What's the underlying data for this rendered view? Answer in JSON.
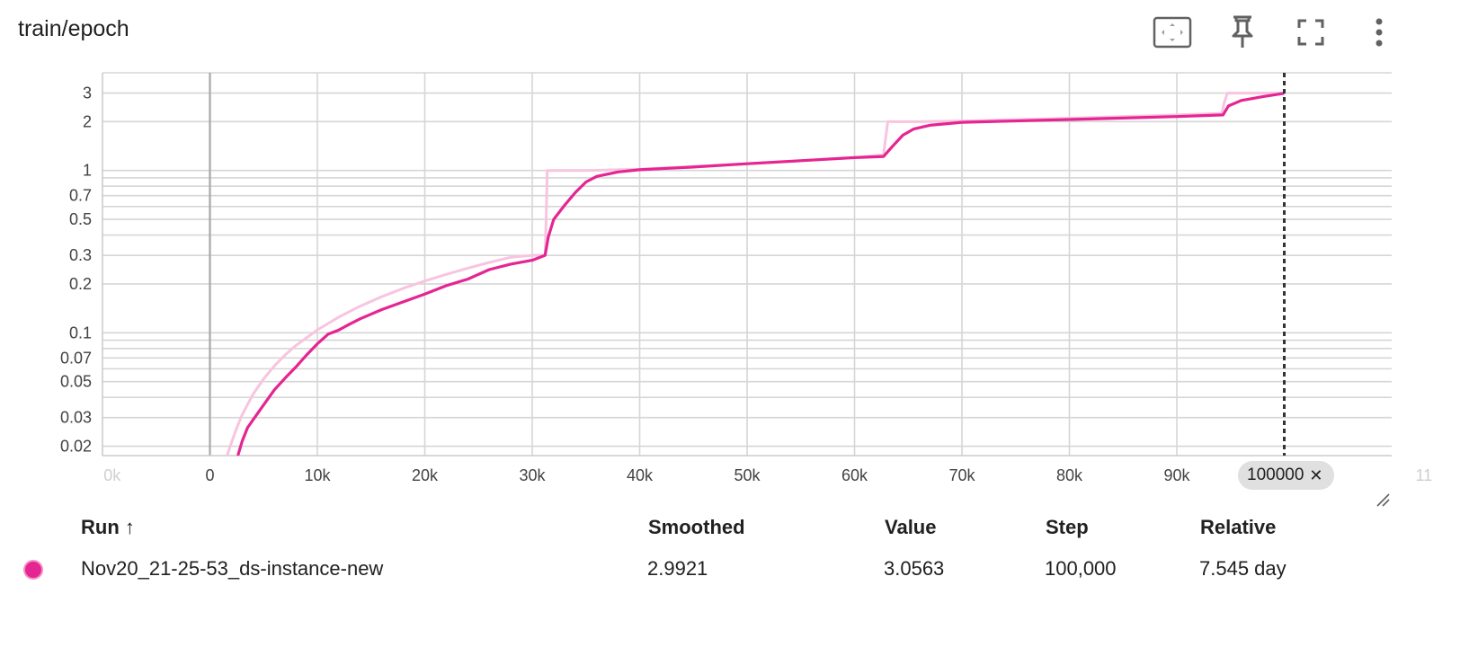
{
  "card": {
    "title": "train/epoch",
    "toolbar": [
      {
        "name": "fit-domain-icon"
      },
      {
        "name": "pin-icon"
      },
      {
        "name": "fullscreen-icon"
      },
      {
        "name": "more-vert-icon"
      }
    ]
  },
  "colors": {
    "smoothed": "#e52592",
    "raw": "#f8c4df",
    "grid": "#d6d6d6",
    "cursor": "#333333"
  },
  "chart_data": {
    "type": "line",
    "title": "",
    "xlabel": "",
    "ylabel": "",
    "y_scale": "log",
    "grid": true,
    "x_range": [
      -10000,
      110000
    ],
    "y_range": [
      0.0175,
      4.0
    ],
    "x_ticks": [
      0,
      10000,
      20000,
      30000,
      40000,
      50000,
      60000,
      70000,
      80000,
      90000
    ],
    "x_tick_labels": [
      "0",
      "10k",
      "20k",
      "30k",
      "40k",
      "50k",
      "60k",
      "70k",
      "80k",
      "90k"
    ],
    "x_tick_labels_faded": [
      "0k",
      "11"
    ],
    "y_ticks": [
      0.02,
      0.03,
      0.05,
      0.07,
      0.1,
      0.2,
      0.3,
      0.5,
      0.7,
      1,
      2,
      3
    ],
    "y_tick_labels": [
      "0.02",
      "0.03",
      "0.05",
      "0.07",
      "0.1",
      "0.2",
      "0.3",
      "0.5",
      "0.7",
      "1",
      "2",
      "3"
    ],
    "y_minor_grid": [
      0.04,
      0.06,
      0.08,
      0.09,
      0.4,
      0.6,
      0.8,
      0.9,
      4
    ],
    "cursor_step": 100000,
    "cursor_label": "100000",
    "series": [
      {
        "role": "raw",
        "points": [
          [
            1600,
            0.0175
          ],
          [
            2000,
            0.021
          ],
          [
            2500,
            0.026
          ],
          [
            3000,
            0.0313
          ],
          [
            4000,
            0.0417
          ],
          [
            5000,
            0.052
          ],
          [
            6000,
            0.0625
          ],
          [
            7000,
            0.073
          ],
          [
            8000,
            0.0834
          ],
          [
            10000,
            0.1042
          ],
          [
            12000,
            0.125
          ],
          [
            14000,
            0.146
          ],
          [
            16000,
            0.167
          ],
          [
            18000,
            0.188
          ],
          [
            20000,
            0.2085
          ],
          [
            22000,
            0.229
          ],
          [
            24000,
            0.25
          ],
          [
            26000,
            0.271
          ],
          [
            28000,
            0.292
          ],
          [
            30000,
            0.3
          ],
          [
            31200,
            0.3
          ],
          [
            31300,
            0.5
          ],
          [
            31400,
            1.0
          ],
          [
            35000,
            1.0
          ],
          [
            40000,
            1.02
          ],
          [
            50000,
            1.1
          ],
          [
            60000,
            1.2
          ],
          [
            62700,
            1.25
          ],
          [
            62900,
            1.6
          ],
          [
            63100,
            2.0
          ],
          [
            66000,
            2.0
          ],
          [
            70000,
            2.02
          ],
          [
            80000,
            2.1
          ],
          [
            90000,
            2.2
          ],
          [
            94200,
            2.25
          ],
          [
            94400,
            2.6
          ],
          [
            94700,
            3.0
          ],
          [
            100000,
            3.0
          ]
        ]
      },
      {
        "role": "smoothed",
        "points": [
          [
            2600,
            0.0175
          ],
          [
            3000,
            0.0215
          ],
          [
            3500,
            0.026
          ],
          [
            4000,
            0.029
          ],
          [
            5000,
            0.036
          ],
          [
            6000,
            0.0445
          ],
          [
            7000,
            0.0525
          ],
          [
            8000,
            0.0615
          ],
          [
            9000,
            0.073
          ],
          [
            10000,
            0.0855
          ],
          [
            11000,
            0.098
          ],
          [
            12000,
            0.104
          ],
          [
            13000,
            0.113
          ],
          [
            14000,
            0.122
          ],
          [
            16000,
            0.139
          ],
          [
            18000,
            0.155
          ],
          [
            20000,
            0.173
          ],
          [
            22000,
            0.195
          ],
          [
            24000,
            0.214
          ],
          [
            26000,
            0.245
          ],
          [
            28000,
            0.265
          ],
          [
            30000,
            0.28
          ],
          [
            31200,
            0.3
          ],
          [
            31500,
            0.39
          ],
          [
            32000,
            0.5
          ],
          [
            33000,
            0.61
          ],
          [
            34000,
            0.73
          ],
          [
            35000,
            0.85
          ],
          [
            36000,
            0.92
          ],
          [
            38000,
            0.98
          ],
          [
            40000,
            1.01
          ],
          [
            45000,
            1.05
          ],
          [
            50000,
            1.1
          ],
          [
            55000,
            1.15
          ],
          [
            60000,
            1.2
          ],
          [
            62700,
            1.22
          ],
          [
            63500,
            1.4
          ],
          [
            64500,
            1.65
          ],
          [
            65500,
            1.8
          ],
          [
            67000,
            1.9
          ],
          [
            70000,
            1.98
          ],
          [
            80000,
            2.06
          ],
          [
            90000,
            2.15
          ],
          [
            94300,
            2.2
          ],
          [
            94800,
            2.5
          ],
          [
            96000,
            2.7
          ],
          [
            98000,
            2.85
          ],
          [
            100000,
            2.9921
          ]
        ]
      }
    ]
  },
  "table": {
    "headers": {
      "run": "Run ↑",
      "smoothed": "Smoothed",
      "value": "Value",
      "step": "Step",
      "relative": "Relative"
    },
    "rows": [
      {
        "run": "Nov20_21-25-53_ds-instance-new",
        "smoothed": "2.9921",
        "value": "3.0563",
        "step": "100,000",
        "relative": "7.545 day",
        "color": "#e52592"
      }
    ]
  }
}
